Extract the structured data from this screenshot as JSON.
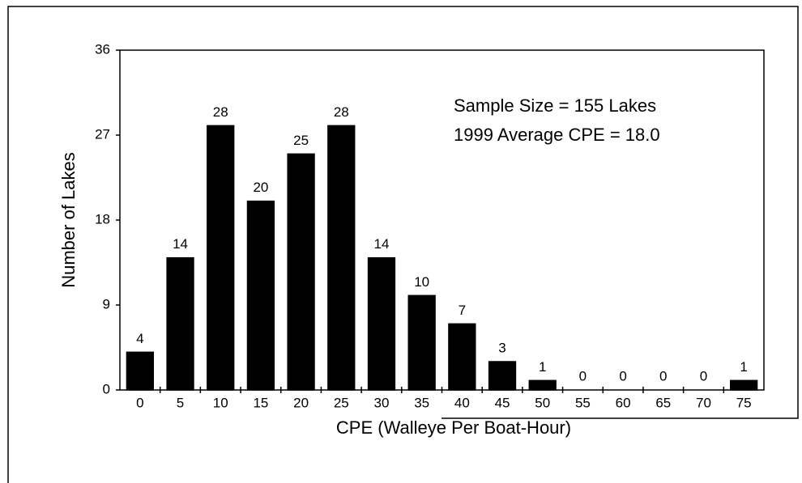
{
  "chart_data": {
    "type": "bar",
    "x_label": "CPE (Walleye Per Boat-Hour)",
    "y_label": "Number of Lakes",
    "annotations": [
      "Sample Size = 155 Lakes",
      "1999 Average CPE = 18.0"
    ],
    "categories": [
      "0",
      "5",
      "10",
      "15",
      "20",
      "25",
      "30",
      "35",
      "40",
      "45",
      "50",
      "55",
      "60",
      "65",
      "70",
      "75"
    ],
    "values": [
      4,
      14,
      28,
      20,
      25,
      28,
      14,
      10,
      7,
      3,
      1,
      0,
      0,
      0,
      0,
      1
    ],
    "color": "#000000",
    "ylim": [
      0,
      36
    ],
    "yticks": [
      0,
      9,
      18,
      27,
      36
    ],
    "grid": false
  }
}
